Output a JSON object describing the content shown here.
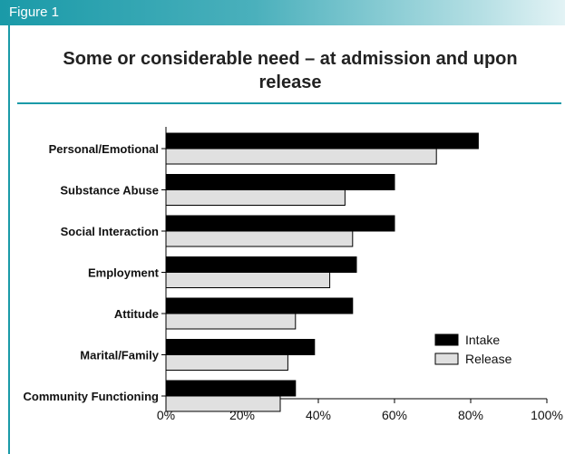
{
  "figure_label": "Figure 1",
  "colors": {
    "accent": "#1a9aa8",
    "intake": "#000000",
    "release": "#e0e0e0"
  },
  "chart_data": {
    "type": "bar",
    "orientation": "horizontal",
    "title": "Some or considerable need – at admission and upon release",
    "categories": [
      "Personal/Emotional",
      "Substance Abuse",
      "Social Interaction",
      "Employment",
      "Attitude",
      "Marital/Family",
      "Community Functioning"
    ],
    "series": [
      {
        "name": "Intake",
        "values": [
          82,
          60,
          60,
          50,
          49,
          39,
          34
        ]
      },
      {
        "name": "Release",
        "values": [
          71,
          47,
          49,
          43,
          34,
          32,
          30
        ]
      }
    ],
    "xlim": [
      0,
      100
    ],
    "xticks": [
      "0%",
      "20%",
      "40%",
      "60%",
      "80%",
      "100%"
    ],
    "xlabel": "",
    "ylabel": "",
    "grid": false,
    "legend_position": "right"
  }
}
